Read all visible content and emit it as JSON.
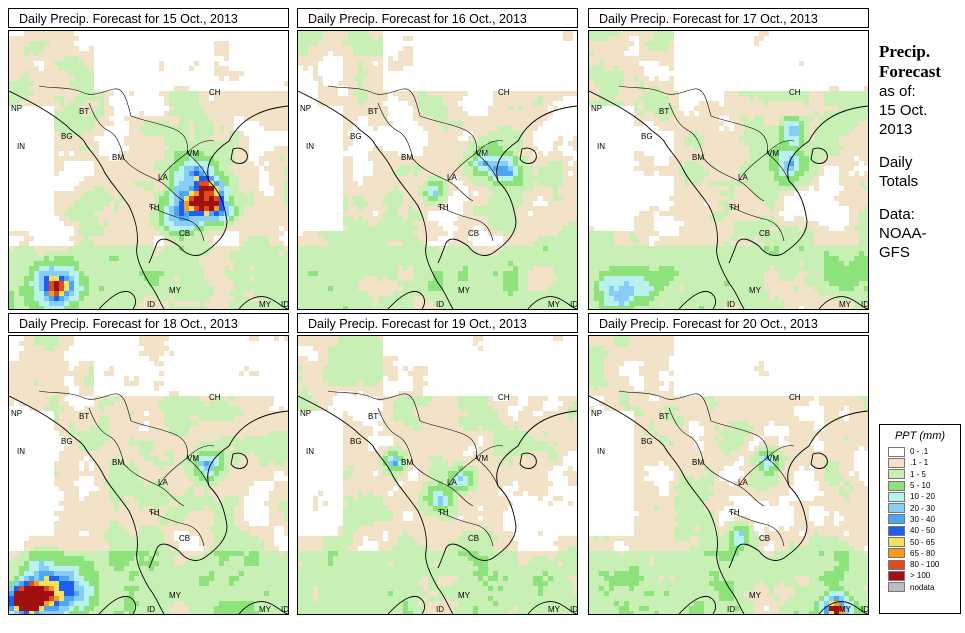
{
  "panels": [
    {
      "title": "Daily Precip. Forecast for  15 Oct., 2013",
      "day": 0
    },
    {
      "title": "Daily Precip. Forecast for  16 Oct., 2013",
      "day": 1
    },
    {
      "title": "Daily Precip. Forecast for  17 Oct., 2013",
      "day": 2
    },
    {
      "title": "Daily Precip. Forecast for  18 Oct., 2013",
      "day": 3
    },
    {
      "title": "Daily Precip. Forecast for  19 Oct., 2013",
      "day": 4
    },
    {
      "title": "Daily Precip. Forecast for  20 Oct., 2013",
      "day": 5
    }
  ],
  "country_labels": [
    "CH",
    "NP",
    "BT",
    "IN",
    "BG",
    "BM",
    "VM",
    "LA",
    "TH",
    "CB",
    "MY",
    "ID",
    "MY",
    "ID"
  ],
  "side": {
    "title1": "Precip.",
    "title2": "Forecast",
    "asof": "as of:",
    "date1": "15 Oct.",
    "date2": "2013",
    "daily1": "Daily",
    "daily2": "Totals",
    "data1": "Data:",
    "data2": "NOAA-",
    "data3": "GFS"
  },
  "legend": {
    "title": "PPT (mm)",
    "items": [
      {
        "label": "0 - .1",
        "color": "#ffffff"
      },
      {
        "label": ".1 - 1",
        "color": "#f1e2c8"
      },
      {
        "label": "1 - 5",
        "color": "#c8f0b4"
      },
      {
        "label": "5 - 10",
        "color": "#8ee27c"
      },
      {
        "label": "10 - 20",
        "color": "#b9f1ef"
      },
      {
        "label": "20 - 30",
        "color": "#88cdf7"
      },
      {
        "label": "30 - 40",
        "color": "#4da6f1"
      },
      {
        "label": "40 - 50",
        "color": "#1e5ff0"
      },
      {
        "label": "50 - 65",
        "color": "#f6e060"
      },
      {
        "label": "65 - 80",
        "color": "#f59a1e"
      },
      {
        "label": "80 - 100",
        "color": "#e14b1a"
      },
      {
        "label": "> 100",
        "color": "#a11010"
      },
      {
        "label": "nodata",
        "color": "#bdbdbd"
      }
    ]
  },
  "colors": {
    "background": "#ffffff",
    "border": "#000000",
    "coastline": "#000000"
  }
}
